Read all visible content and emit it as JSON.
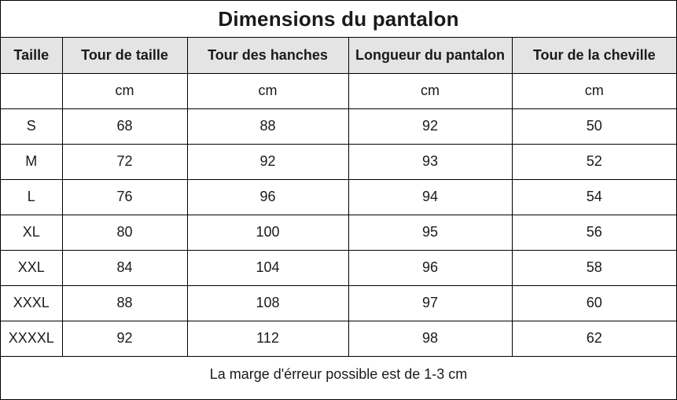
{
  "title": "Dimensions du pantalon",
  "table": {
    "headers": [
      "Taille",
      "Tour de taille",
      "Tour des hanches",
      "Longueur du pantalon",
      "Tour de la cheville"
    ],
    "units": [
      "",
      "cm",
      "cm",
      "cm",
      "cm"
    ],
    "rows": [
      [
        "S",
        "68",
        "88",
        "92",
        "50"
      ],
      [
        "M",
        "72",
        "92",
        "93",
        "52"
      ],
      [
        "L",
        "76",
        "96",
        "94",
        "54"
      ],
      [
        "XL",
        "80",
        "100",
        "95",
        "56"
      ],
      [
        "XXL",
        "84",
        "104",
        "96",
        "58"
      ],
      [
        "XXXL",
        "88",
        "108",
        "97",
        "60"
      ],
      [
        "XXXXL",
        "92",
        "112",
        "98",
        "62"
      ]
    ]
  },
  "footer": "La marge d'érreur possible est de 1-3 cm"
}
